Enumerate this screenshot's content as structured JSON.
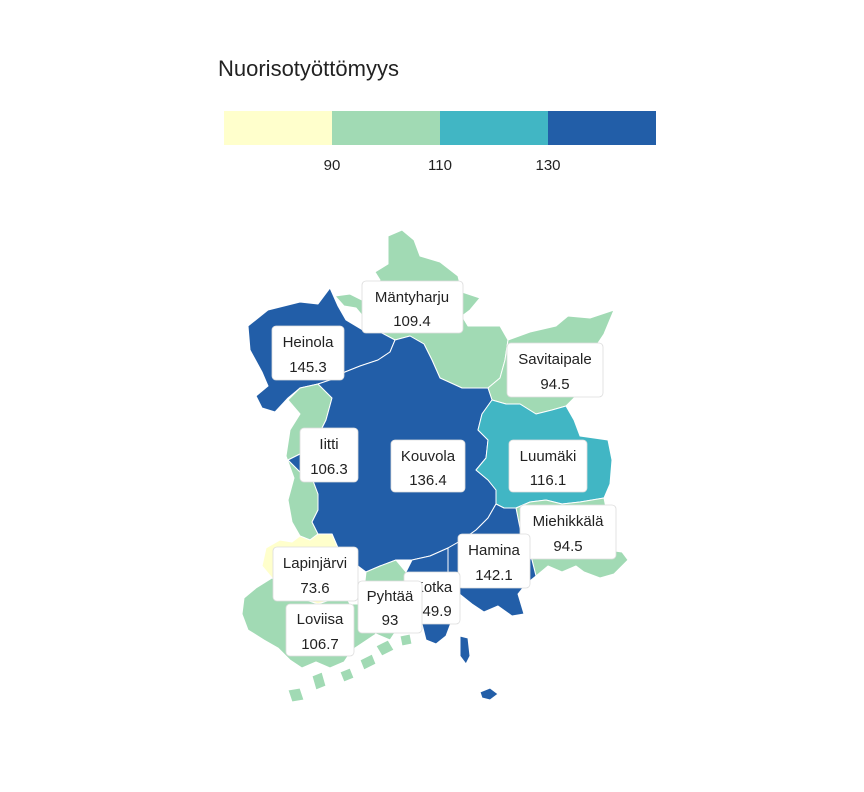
{
  "title": "Nuorisotyöttömyys",
  "colors": {
    "c1": "#ffffcc",
    "c2": "#a1dab4",
    "c3": "#41b6c4",
    "c4": "#225ea8",
    "border": "#ffffff"
  },
  "legend": {
    "breaks": [
      "90",
      "110",
      "130"
    ]
  },
  "municipalities": [
    {
      "name": "Mäntyharju",
      "value": "109.4",
      "class": "c2"
    },
    {
      "name": "Heinola",
      "value": "145.3",
      "class": "c4"
    },
    {
      "name": "Savitaipale",
      "value": "94.5",
      "class": "c2"
    },
    {
      "name": "Iitti",
      "value": "106.3",
      "class": "c2"
    },
    {
      "name": "Kouvola",
      "value": "136.4",
      "class": "c4"
    },
    {
      "name": "Luumäki",
      "value": "116.1",
      "class": "c3"
    },
    {
      "name": "Miehikkälä",
      "value": "94.5",
      "class": "c2"
    },
    {
      "name": "Hamina",
      "value": "142.1",
      "class": "c4"
    },
    {
      "name": "Lapinjärvi",
      "value": "73.6",
      "class": "c1"
    },
    {
      "name": "Kotka",
      "value": "149.9",
      "class": "c4"
    },
    {
      "name": "Pyhtää",
      "value": "93",
      "class": "c2"
    },
    {
      "name": "Loviisa",
      "value": "106.7",
      "class": "c2"
    }
  ]
}
